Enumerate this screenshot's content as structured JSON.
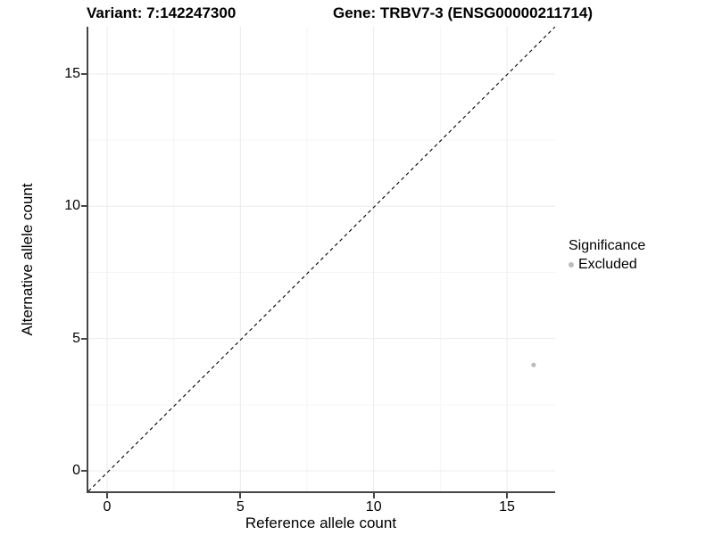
{
  "titles": {
    "variant": "Variant: 7:142247300",
    "gene": "Gene: TRBV7-3 (ENSG00000211714)"
  },
  "axes": {
    "x": {
      "label": "Reference allele count",
      "tick_labels": [
        "0",
        "5",
        "10",
        "15"
      ],
      "tick_values": [
        0,
        5,
        10,
        15
      ],
      "minor_tick_values": [
        2.5,
        7.5,
        12.5
      ]
    },
    "y": {
      "label": "Alternative allele count",
      "tick_labels": [
        "0",
        "5",
        "10",
        "15"
      ],
      "tick_values": [
        0,
        5,
        10,
        15
      ],
      "minor_tick_values": [
        2.5,
        7.5,
        12.5
      ]
    }
  },
  "legend": {
    "title": "Significance",
    "items": [
      {
        "label": "Excluded",
        "color": "#bcbcbc"
      }
    ]
  },
  "chart_data": {
    "type": "scatter",
    "title": "Variant: 7:142247300 — Gene: TRBV7-3 (ENSG00000211714)",
    "xlabel": "Reference allele count",
    "ylabel": "Alternative allele count",
    "xlim": [
      0,
      16
    ],
    "ylim": [
      0,
      16
    ],
    "x_ticks": [
      0,
      5,
      10,
      15
    ],
    "y_ticks": [
      0,
      5,
      10,
      15
    ],
    "grid": true,
    "legend_title": "Significance",
    "legend_position": "right",
    "series": [
      {
        "name": "Excluded",
        "color": "#bcbcbc",
        "points": [
          {
            "x": 16,
            "y": 4
          }
        ]
      }
    ],
    "reference_line": {
      "equation": "y = x",
      "style": "dashed",
      "color": "#000000"
    }
  },
  "colors": {
    "background": "#ffffff",
    "axis_line": "#464646",
    "grid_major": "#ebebeb",
    "grid_minor": "#f5f5f5",
    "text": "#000000",
    "point": "#bcbcbc"
  }
}
